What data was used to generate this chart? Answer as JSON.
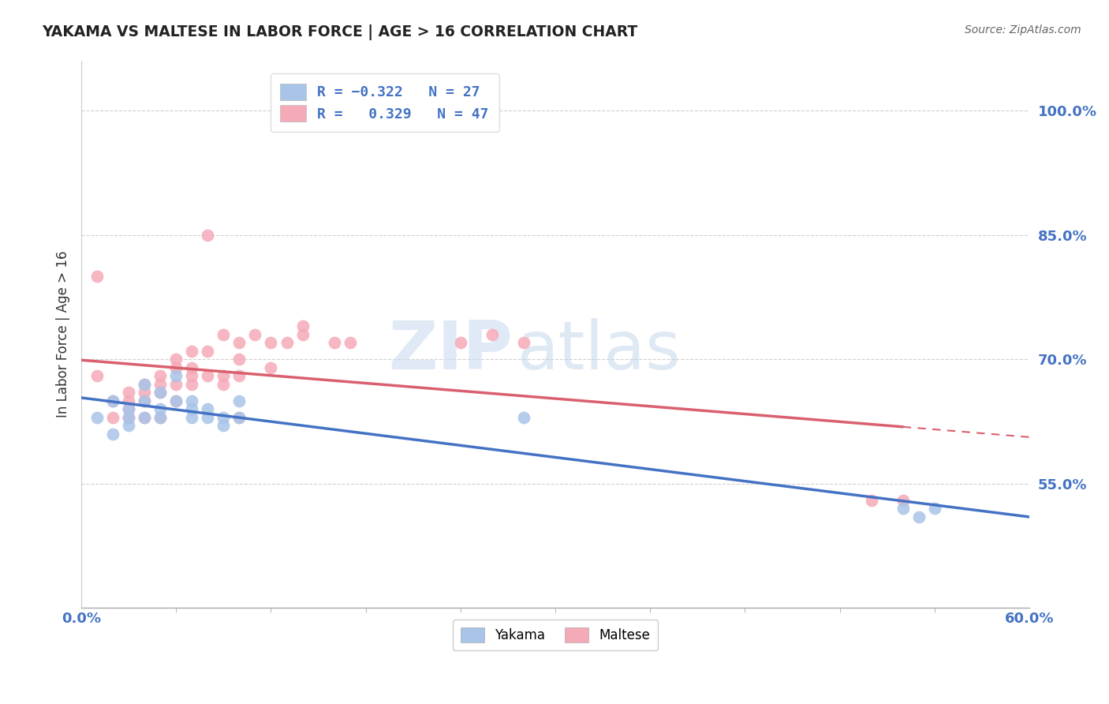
{
  "title": "YAKAMA VS MALTESE IN LABOR FORCE | AGE > 16 CORRELATION CHART",
  "source_text": "Source: ZipAtlas.com",
  "xlabel": "",
  "ylabel": "In Labor Force | Age > 16",
  "xlim": [
    0.0,
    0.6
  ],
  "ylim": [
    0.4,
    1.06
  ],
  "ytick_labels": [
    "55.0%",
    "70.0%",
    "85.0%",
    "100.0%"
  ],
  "ytick_values": [
    0.55,
    0.7,
    0.85,
    1.0
  ],
  "xtick_labels": [
    "0.0%",
    "60.0%"
  ],
  "xtick_values": [
    0.0,
    0.6
  ],
  "yakama_R": -0.322,
  "yakama_N": 27,
  "maltese_R": 0.329,
  "maltese_N": 47,
  "yakama_color": "#a8c4e8",
  "maltese_color": "#f5aab8",
  "yakama_line_color": "#4472c4",
  "maltese_line_color": "#d9606e",
  "watermark_zip": "ZIP",
  "watermark_atlas": "atlas",
  "yakama_points_x": [
    0.01,
    0.02,
    0.02,
    0.03,
    0.03,
    0.03,
    0.04,
    0.04,
    0.04,
    0.05,
    0.05,
    0.05,
    0.06,
    0.06,
    0.07,
    0.07,
    0.07,
    0.08,
    0.08,
    0.09,
    0.09,
    0.1,
    0.1,
    0.28,
    0.52,
    0.53,
    0.54
  ],
  "yakama_points_y": [
    0.63,
    0.61,
    0.65,
    0.62,
    0.64,
    0.63,
    0.67,
    0.65,
    0.63,
    0.66,
    0.64,
    0.63,
    0.68,
    0.65,
    0.65,
    0.64,
    0.63,
    0.64,
    0.63,
    0.63,
    0.62,
    0.65,
    0.63,
    0.63,
    0.52,
    0.51,
    0.52
  ],
  "maltese_points_x": [
    0.01,
    0.01,
    0.02,
    0.02,
    0.03,
    0.03,
    0.03,
    0.04,
    0.04,
    0.04,
    0.05,
    0.05,
    0.05,
    0.06,
    0.06,
    0.06,
    0.07,
    0.07,
    0.07,
    0.08,
    0.08,
    0.09,
    0.09,
    0.1,
    0.1,
    0.1,
    0.11,
    0.12,
    0.13,
    0.14,
    0.14,
    0.16,
    0.17,
    0.24,
    0.26,
    0.28,
    0.5,
    0.52,
    0.03,
    0.04,
    0.05,
    0.06,
    0.07,
    0.08,
    0.09,
    0.1,
    0.12
  ],
  "maltese_points_y": [
    0.8,
    0.68,
    0.65,
    0.63,
    0.66,
    0.65,
    0.63,
    0.67,
    0.65,
    0.63,
    0.68,
    0.66,
    0.63,
    0.69,
    0.67,
    0.65,
    0.71,
    0.69,
    0.67,
    0.85,
    0.68,
    0.73,
    0.68,
    0.72,
    0.7,
    0.63,
    0.73,
    0.72,
    0.72,
    0.74,
    0.73,
    0.72,
    0.72,
    0.72,
    0.73,
    0.72,
    0.53,
    0.53,
    0.64,
    0.66,
    0.67,
    0.7,
    0.68,
    0.71,
    0.67,
    0.68,
    0.69
  ],
  "background_color": "#ffffff",
  "grid_color": "#d0d0d0",
  "title_color": "#222222",
  "axis_label_color": "#333333",
  "tick_label_color": "#4472c4",
  "source_color": "#666666"
}
